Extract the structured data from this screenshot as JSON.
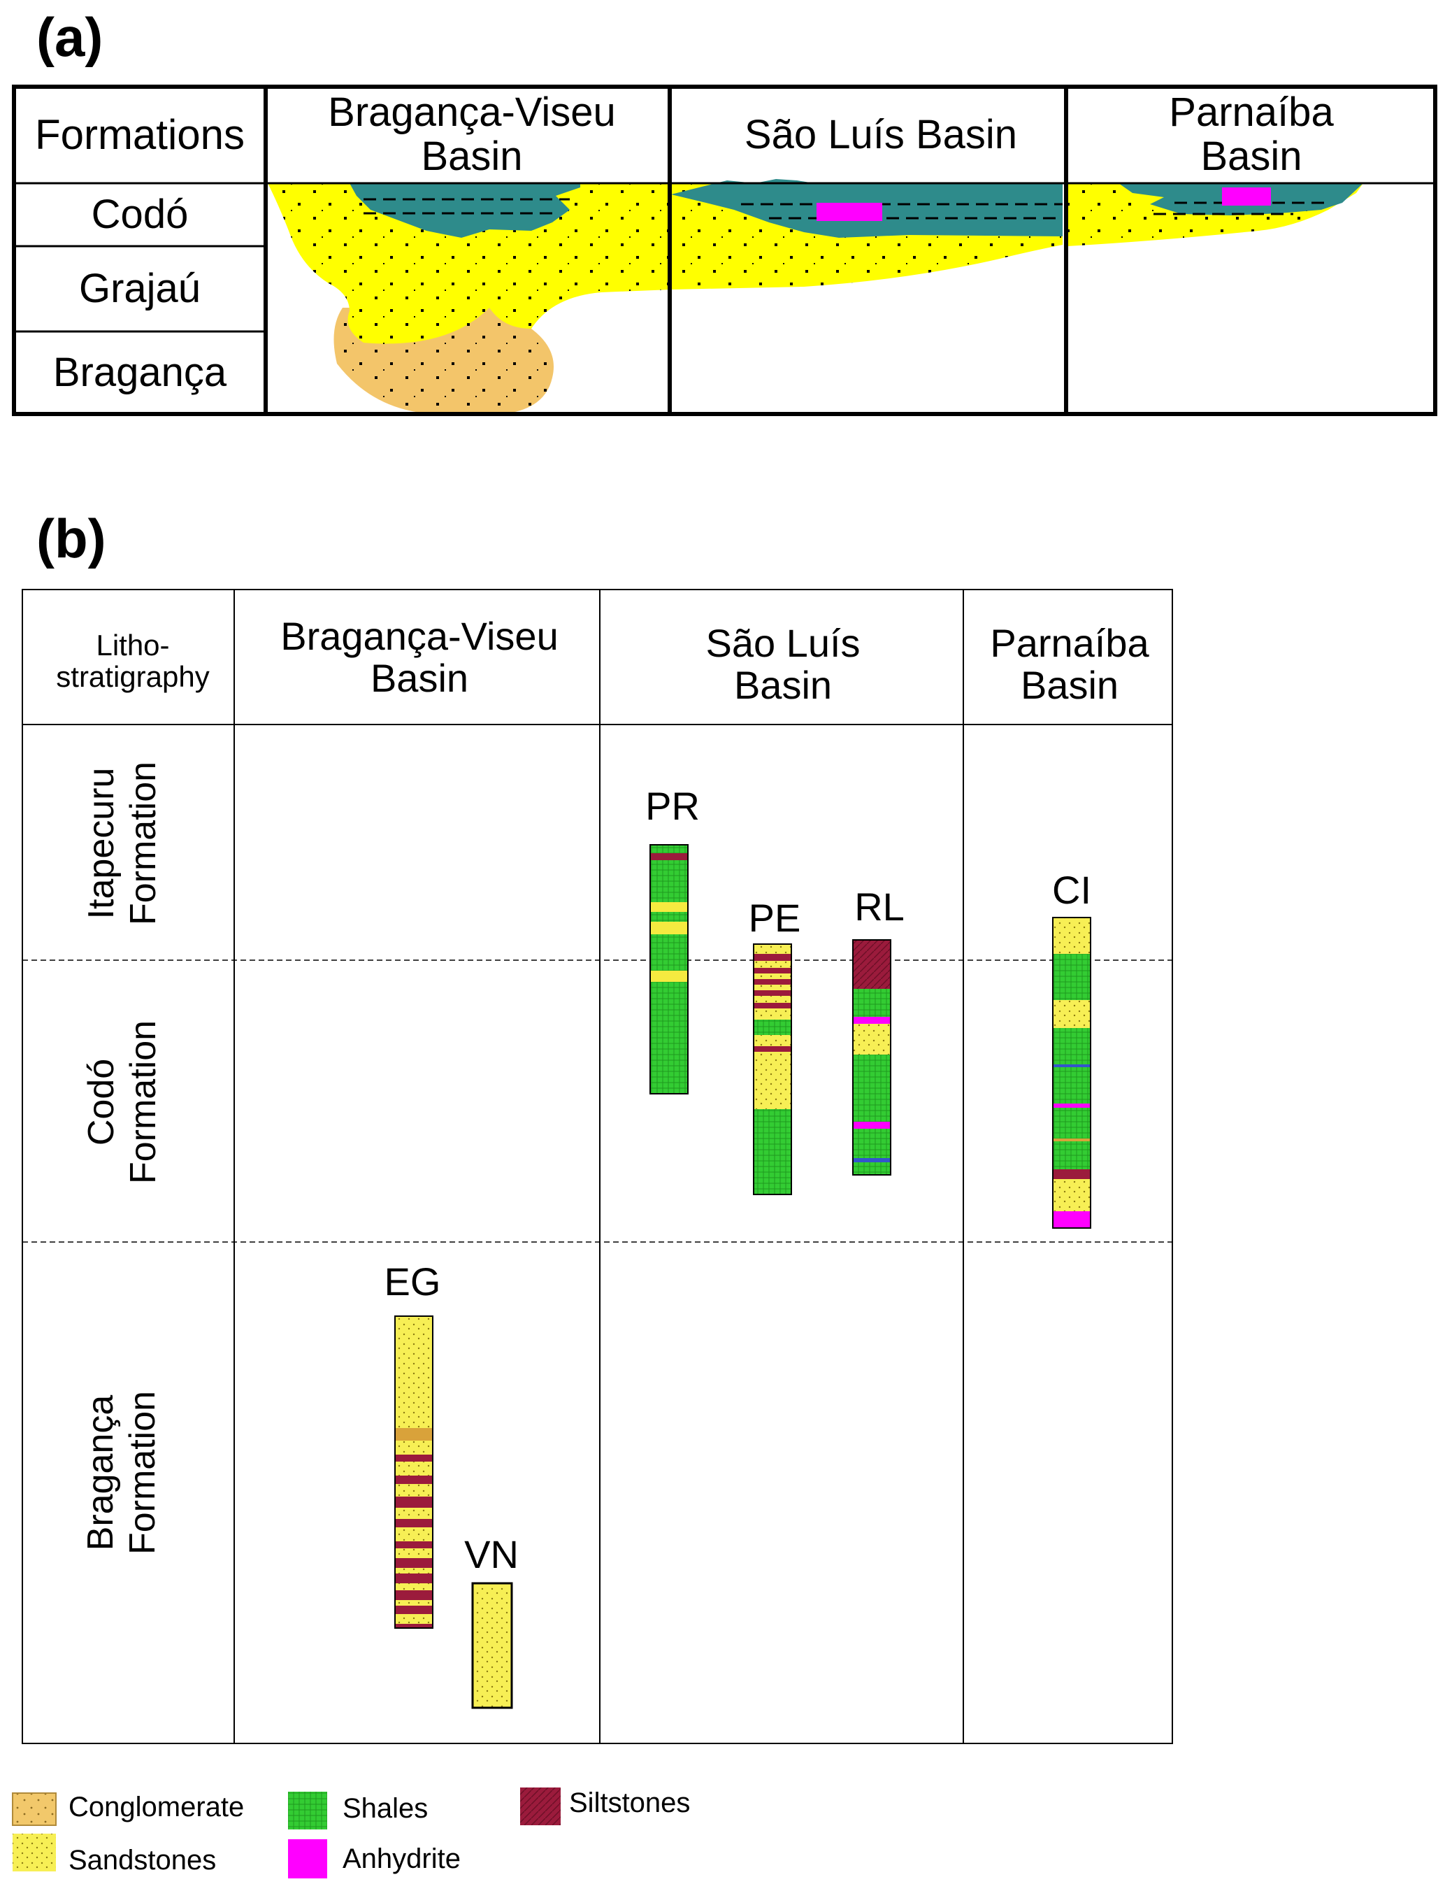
{
  "panel_a": {
    "label": "(a)",
    "header": {
      "formations": "Formations",
      "braganca_viseu": "Bragança-Viseu Basin",
      "sao_luis": "São Luís Basin",
      "parnaiba": "Parnaíba Basin"
    },
    "rows": [
      "Codó",
      "Grajaú",
      "Bragança"
    ]
  },
  "panel_b": {
    "label": "(b)",
    "header": {
      "lithostratigraphy": "Litho-stratigraphy",
      "braganca_viseu": "Bragança-Viseu Basin",
      "sao_luis": "São Luís Basin",
      "parnaiba": "Parnaíba Basin"
    },
    "rows": [
      "Itapecuru Formation",
      "Codó Formation",
      "Bragança Formation"
    ],
    "wells": {
      "EG": "EG",
      "VN": "VN",
      "PR": "PR",
      "PE": "PE",
      "RL": "RL",
      "CI": "CI"
    }
  },
  "legend": {
    "conglomerate": "Conglomerate",
    "sandstones": "Sandstones",
    "shales": "Shales",
    "anhydrite": "Anhydrite",
    "siltstones": "Siltstones"
  },
  "colors": {
    "sandstone": "#ffff00",
    "sandstone_pale": "#f5e66a",
    "conglomerate": "#f2c86b",
    "shale": "#33cc33",
    "shale_dark": "#2e8b8b",
    "anhydrite": "#ff00ff",
    "siltstone": "#9b1b3c",
    "blue_band": "#3355cc"
  }
}
